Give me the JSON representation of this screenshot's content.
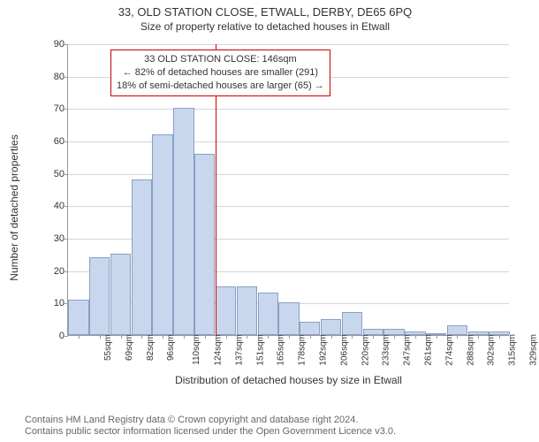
{
  "title": "33, OLD STATION CLOSE, ETWALL, DERBY, DE65 6PQ",
  "subtitle": "Size of property relative to detached houses in Etwall",
  "y_axis_label": "Number of detached properties",
  "x_axis_label": "Distribution of detached houses by size in Etwall",
  "footer_line1": "Contains HM Land Registry data © Crown copyright and database right 2024.",
  "footer_line2": "Contains public sector information licensed under the Open Government Licence v3.0.",
  "annotation": {
    "line1": "33 OLD STATION CLOSE: 146sqm",
    "line2": "← 82% of detached houses are smaller (291)",
    "line3": "18% of semi-detached houses are larger (65) →"
  },
  "chart": {
    "type": "histogram",
    "ylim": [
      0,
      90
    ],
    "ytick_step": 10,
    "bar_fill": "#c9d7ee",
    "bar_stroke": "#8a9fc4",
    "grid_color": "#d5d5d5",
    "refline_color": "#cc0000",
    "refline_x_index": 7,
    "categories": [
      "55sqm",
      "69sqm",
      "82sqm",
      "96sqm",
      "110sqm",
      "124sqm",
      "137sqm",
      "151sqm",
      "165sqm",
      "178sqm",
      "192sqm",
      "206sqm",
      "220sqm",
      "233sqm",
      "247sqm",
      "261sqm",
      "274sqm",
      "288sqm",
      "302sqm",
      "315sqm",
      "329sqm"
    ],
    "values": [
      11,
      24,
      25,
      48,
      62,
      70,
      56,
      15,
      15,
      13,
      10,
      4,
      5,
      7,
      2,
      2,
      1,
      0,
      3,
      1,
      1
    ]
  }
}
